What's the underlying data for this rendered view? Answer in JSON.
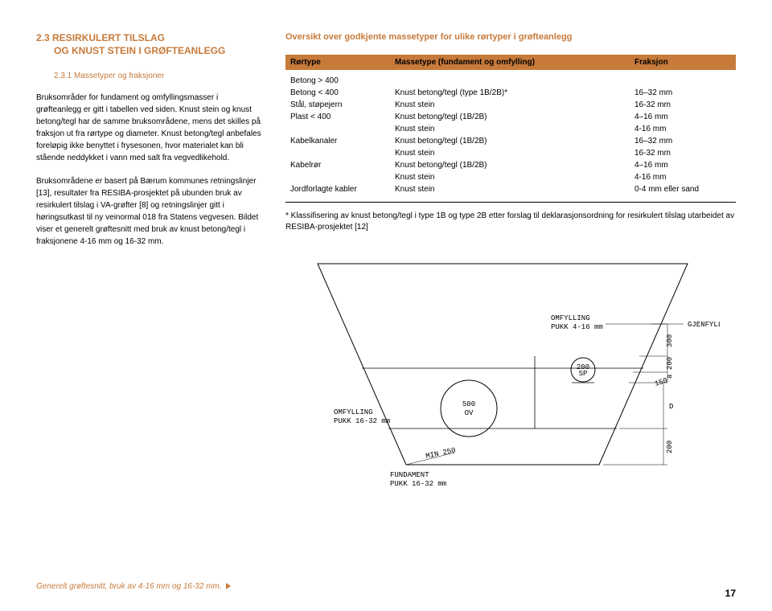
{
  "heading": {
    "line1": "2.3 RESIRKULERT TILSLAG",
    "line2": "OG KNUST STEIN I GRØFTEANLEGG"
  },
  "sub_heading": "2.3.1 Massetyper og fraksjoner",
  "para1": "Bruksområder for fundament og omfyllingsmasser i grøfteanlegg er gitt i tabellen ved siden. Knust stein og knust betong/tegl har de samme bruksområdene, mens det skilles på fraksjon ut fra rørtype og diameter. Knust betong/tegl anbefales foreløpig ikke benyttet i frysesonen, hvor materialet kan bli stående neddykket i vann med salt fra vegvedlikehold.",
  "para2": "Bruksområdene er basert på Bærum kommunes retningslinjer [13], resultater fra RESIBA-prosjektet på ubunden bruk av resirkulert tilslag i VA-grøfter [8] og retningslinjer gitt i høringsutkast til ny veinormal 018 fra Statens vegvesen. Bildet viser et generelt grøftesnitt med bruk av knust betong/tegl i fraksjonene 4-16 mm og 16-32 mm.",
  "overview_title": "Oversikt over godkjente massetyper for ulike rørtyper i grøfteanlegg",
  "table": {
    "headers": {
      "c1": "Rørtype",
      "c2": "Massetype (fundament og omfylling)",
      "c3": "Fraksjon"
    },
    "rows": [
      {
        "c1": "Betong > 400",
        "c2": "",
        "c3": ""
      },
      {
        "c1": "Betong < 400",
        "c2": "Knust betong/tegl (type 1B/2B)*",
        "c3": "16–32 mm"
      },
      {
        "c1": "Stål, støpejern",
        "c2": "Knust stein",
        "c3": "16-32 mm"
      },
      {
        "c1": "Plast < 400",
        "c2": "Knust betong/tegl (1B/2B)",
        "c3": "4–16 mm"
      },
      {
        "c1": "",
        "c2": "Knust stein",
        "c3": "4-16 mm"
      },
      {
        "c1": "Kabelkanaler",
        "c2": "Knust betong/tegl (1B/2B)",
        "c3": "16–32 mm"
      },
      {
        "c1": "",
        "c2": "Knust stein",
        "c3": "16-32 mm"
      },
      {
        "c1": "Kabelrør",
        "c2": "Knust betong/tegl (1B/2B)",
        "c3": "4–16 mm"
      },
      {
        "c1": "",
        "c2": "Knust stein",
        "c3": "4-16 mm"
      },
      {
        "c1": "Jordforlagte kabler",
        "c2": "Knust stein",
        "c3": "0-4 mm eller sand"
      }
    ]
  },
  "footnote": "* Klassifisering av knust betong/tegl i type 1B og type 2B etter forslag til deklarasjonsordning for resirkulert tilslag utarbeidet av RESIBA-prosjektet [12]",
  "diagram": {
    "labels": {
      "omfylling_4_16": "OMFYLLING\nPUKK 4-16 mm",
      "gjenfylling": "GJENFYLLING",
      "omfylling_16_32": "OMFYLLING\nPUKK 16-32 mm",
      "fundament": "FUNDAMENT\nPUKK 16-32 mm",
      "min250": "MIN 250",
      "ov": "500\nOV",
      "sp": "200\nSP",
      "dims_right": [
        "300",
        "200",
        "a",
        "150"
      ],
      "dim_D": "D",
      "dim_200": "200"
    }
  },
  "caption": "Generelt grøftesnitt, bruk av 4-16 mm og 16-32 mm.",
  "page_num": "17"
}
